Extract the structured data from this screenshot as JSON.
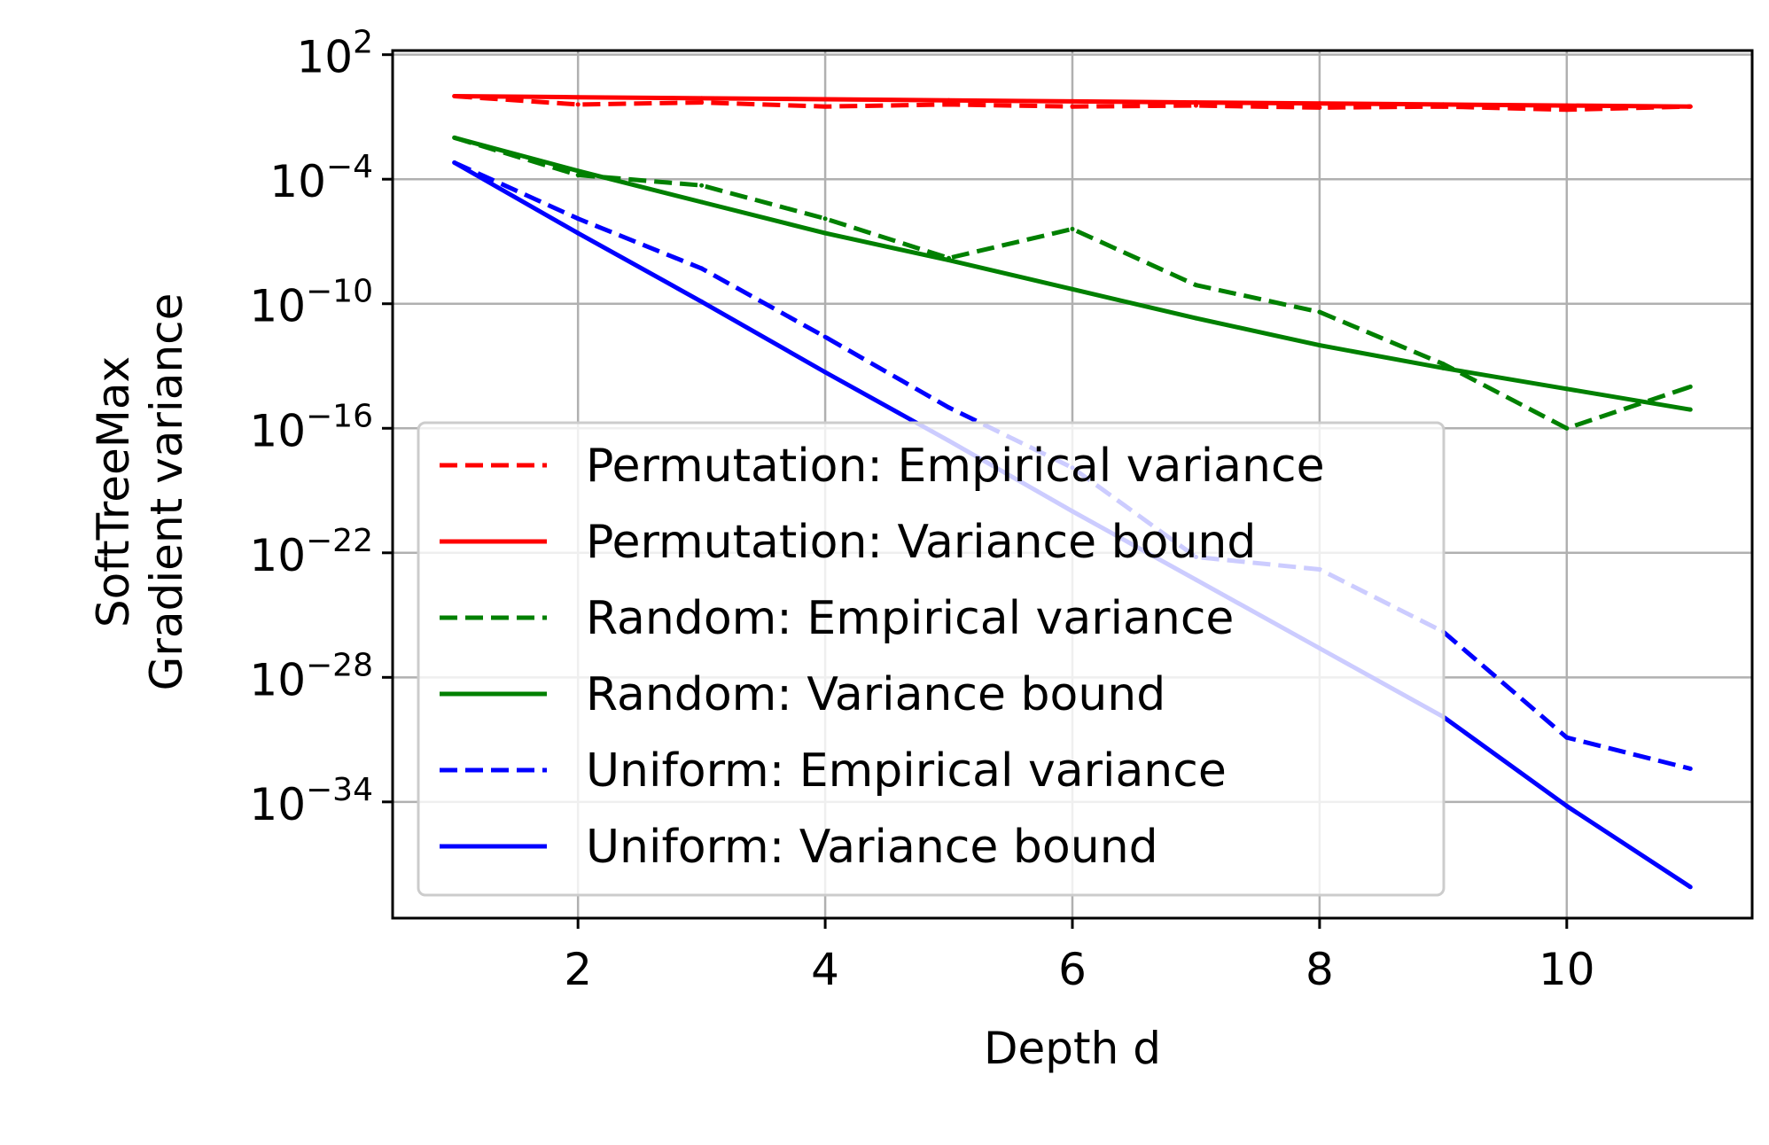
{
  "chart_data": {
    "type": "line",
    "title": "",
    "xlabel": "Depth d",
    "ylabel_lines": [
      "SoftTreeMax",
      "Gradient variance"
    ],
    "x_ticks": [
      2,
      4,
      6,
      8,
      10
    ],
    "x_tick_labels": [
      "2",
      "4",
      "6",
      "8",
      "10"
    ],
    "xlim": [
      0.5,
      11.5
    ],
    "y_scale": "log",
    "y_ticks_exponent": [
      2,
      -4,
      -10,
      -16,
      -22,
      -28,
      -34
    ],
    "y_tick_base": "10",
    "ylim_exponent": [
      -39.6,
      2.2
    ],
    "grid": true,
    "legend_placement": "lower-left",
    "x": [
      1,
      2,
      3,
      4,
      5,
      6,
      7,
      8,
      9,
      10,
      11
    ],
    "series": [
      {
        "name": "Permutation: Empirical variance",
        "color": "#ff0000",
        "style": "dashed",
        "log10_values": [
          0.0,
          -0.4,
          -0.3,
          -0.5,
          -0.4,
          -0.5,
          -0.45,
          -0.55,
          -0.5,
          -0.65,
          -0.5
        ]
      },
      {
        "name": "Permutation: Variance bound",
        "color": "#ff0000",
        "style": "solid",
        "log10_values": [
          0.0,
          -0.05,
          -0.1,
          -0.15,
          -0.2,
          -0.25,
          -0.3,
          -0.35,
          -0.4,
          -0.45,
          -0.5
        ]
      },
      {
        "name": "Random: Empirical variance",
        "color": "#008000",
        "style": "dashed",
        "log10_values": [
          -2.0,
          -3.8,
          -4.3,
          -5.9,
          -7.8,
          -6.4,
          -9.1,
          -10.4,
          -12.9,
          -16.0,
          -14.0
        ]
      },
      {
        "name": "Random: Variance bound",
        "color": "#008000",
        "style": "solid",
        "log10_values": [
          -2.0,
          -3.6,
          -5.1,
          -6.6,
          -7.9,
          -9.3,
          -10.7,
          -12.0,
          -13.1,
          -14.1,
          -15.1
        ]
      },
      {
        "name": "Uniform: Empirical variance",
        "color": "#0000ff",
        "style": "dashed",
        "log10_values": [
          -3.2,
          -5.9,
          -8.3,
          -11.6,
          -15.0,
          -17.9,
          -22.2,
          -22.8,
          -25.8,
          -30.9,
          -32.4
        ]
      },
      {
        "name": "Uniform: Variance bound",
        "color": "#0000ff",
        "style": "solid",
        "log10_values": [
          -3.2,
          -6.6,
          -9.9,
          -13.3,
          -16.6,
          -20.0,
          -23.3,
          -26.6,
          -29.9,
          -34.2,
          -38.1
        ]
      }
    ]
  }
}
